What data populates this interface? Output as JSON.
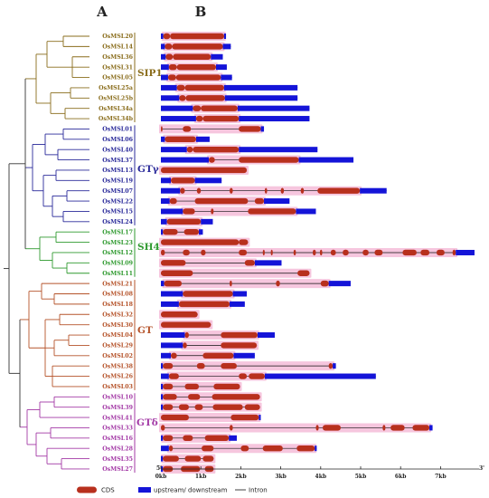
{
  "panels": {
    "a": "A",
    "b": "B"
  },
  "colors": {
    "SIP1": "#8a6d1c",
    "GTgamma": "#2a2a9a",
    "SH4": "#2f9a2f",
    "GT": "#b5532a",
    "GTdelta": "#a33aa6",
    "cds": "#b8301d",
    "utr": "#1414d8",
    "highlight": "#f6c6de",
    "root": "#333333"
  },
  "groups": [
    {
      "id": "SIP1",
      "label": "SIP1",
      "color": "#8a6d1c"
    },
    {
      "id": "GTgamma",
      "label": "GTγ",
      "color": "#2a2a9a"
    },
    {
      "id": "SH4",
      "label": "SH4",
      "color": "#2f9a2f"
    },
    {
      "id": "GT",
      "label": "GT",
      "color": "#b5532a"
    },
    {
      "id": "GTdelta",
      "label": "GTδ",
      "color": "#a33aa6"
    }
  ],
  "genes": [
    {
      "name": "OsMSL20",
      "group": "SIP1",
      "len": 1.63,
      "ex": [
        [
          0.06,
          0.23
        ],
        [
          0.23,
          1.58
        ]
      ]
    },
    {
      "name": "OsMSL14",
      "group": "SIP1",
      "len": 1.75,
      "ex": [
        [
          0.1,
          0.28
        ],
        [
          0.28,
          1.55
        ]
      ]
    },
    {
      "name": "OsMSL36",
      "group": "SIP1",
      "len": 1.55,
      "ex": [
        [
          0.12,
          0.3
        ],
        [
          0.3,
          1.25
        ]
      ]
    },
    {
      "name": "OsMSL31",
      "group": "SIP1",
      "len": 1.65,
      "ex": [
        [
          0.2,
          0.4
        ],
        [
          0.4,
          1.38
        ]
      ]
    },
    {
      "name": "OsMSL05",
      "group": "SIP1",
      "len": 1.78,
      "ex": [
        [
          0.18,
          0.38
        ],
        [
          0.38,
          1.5
        ]
      ]
    },
    {
      "name": "OsMSL25a",
      "group": "SIP1",
      "len": 3.42,
      "ex": [
        [
          0.4,
          0.6
        ],
        [
          0.6,
          1.58
        ]
      ]
    },
    {
      "name": "OsMSL25b",
      "group": "SIP1",
      "len": 3.42,
      "ex": [
        [
          0.46,
          0.62
        ],
        [
          0.62,
          1.6
        ]
      ]
    },
    {
      "name": "OsMSL34a",
      "group": "SIP1",
      "len": 3.72,
      "ex": [
        [
          0.8,
          1.0
        ],
        [
          1.0,
          1.92
        ]
      ]
    },
    {
      "name": "OsMSL34b",
      "group": "SIP1",
      "len": 3.72,
      "ex": [
        [
          0.88,
          1.05
        ],
        [
          1.05,
          1.95
        ]
      ]
    },
    {
      "name": "OsMSL01",
      "group": "GTgamma",
      "len": 2.58,
      "ex": [
        [
          0.0,
          0.04
        ],
        [
          0.55,
          0.75
        ],
        [
          1.95,
          2.5
        ]
      ]
    },
    {
      "name": "OsMSL06",
      "group": "GTgamma",
      "len": 1.22,
      "ex": [
        [
          0.1,
          0.88
        ]
      ]
    },
    {
      "name": "OsMSL40",
      "group": "GTgamma",
      "len": 3.92,
      "ex": [
        [
          0.65,
          0.8
        ],
        [
          0.8,
          1.95
        ]
      ]
    },
    {
      "name": "OsMSL37",
      "group": "GTgamma",
      "len": 4.82,
      "ex": [
        [
          1.2,
          1.35
        ],
        [
          1.95,
          3.45
        ]
      ]
    },
    {
      "name": "OsMSL13",
      "group": "GTgamma",
      "len": 2.15,
      "ex": [
        [
          0.0,
          2.15
        ]
      ]
    },
    {
      "name": "OsMSL19",
      "group": "GTgamma",
      "len": 1.52,
      "ex": [
        [
          0.25,
          0.85
        ]
      ]
    },
    {
      "name": "OsMSL07",
      "group": "GTgamma",
      "len": 5.65,
      "ex": [
        [
          0.48,
          0.6
        ],
        [
          0.9,
          1.0
        ],
        [
          1.72,
          1.8
        ],
        [
          2.6,
          2.66
        ],
        [
          3.0,
          3.08
        ],
        [
          3.5,
          3.58
        ],
        [
          3.92,
          4.98
        ]
      ]
    },
    {
      "name": "OsMSL22",
      "group": "GTgamma",
      "len": 3.22,
      "ex": [
        [
          0.22,
          0.4
        ],
        [
          0.85,
          2.18
        ],
        [
          2.35,
          2.58
        ]
      ]
    },
    {
      "name": "OsMSL15",
      "group": "GTgamma",
      "len": 3.88,
      "ex": [
        [
          0.55,
          0.85
        ],
        [
          1.25,
          1.32
        ],
        [
          2.18,
          3.38
        ]
      ]
    },
    {
      "name": "OsMSL24",
      "group": "GTgamma",
      "len": 1.3,
      "ex": [
        [
          0.15,
          1.0
        ]
      ]
    },
    {
      "name": "OsMSL17",
      "group": "SH4",
      "len": 1.05,
      "ex": [
        [
          0.05,
          0.42
        ],
        [
          0.58,
          0.95
        ]
      ]
    },
    {
      "name": "OsMSL23",
      "group": "SH4",
      "len": 2.18,
      "ex": [
        [
          0.0,
          1.95
        ],
        [
          1.95,
          2.18
        ]
      ]
    },
    {
      "name": "OsMSL12",
      "group": "SH4",
      "len": 7.85,
      "ex": [
        [
          0.0,
          0.1
        ],
        [
          0.55,
          0.72
        ],
        [
          1.0,
          1.12
        ],
        [
          1.95,
          2.15
        ],
        [
          2.55,
          2.6
        ],
        [
          2.75,
          2.8
        ],
        [
          3.32,
          3.38
        ],
        [
          3.8,
          3.88
        ],
        [
          3.98,
          4.04
        ],
        [
          4.25,
          4.38
        ],
        [
          4.55,
          4.7
        ],
        [
          5.05,
          5.2
        ],
        [
          5.35,
          5.55
        ],
        [
          6.05,
          6.4
        ],
        [
          6.5,
          6.72
        ],
        [
          6.9,
          7.1
        ],
        [
          7.3,
          7.38
        ]
      ]
    },
    {
      "name": "OsMSL09",
      "group": "SH4",
      "len": 3.02,
      "ex": [
        [
          0.0,
          0.62
        ],
        [
          2.1,
          2.35
        ]
      ]
    },
    {
      "name": "OsMSL11",
      "group": "SH4",
      "len": 3.72,
      "ex": [
        [
          0.0,
          0.8
        ],
        [
          3.42,
          3.72
        ]
      ]
    },
    {
      "name": "OsMSL21",
      "group": "GT",
      "len": 4.75,
      "ex": [
        [
          0.08,
          0.52
        ],
        [
          1.72,
          1.78
        ],
        [
          2.88,
          2.98
        ],
        [
          4.0,
          4.2
        ]
      ]
    },
    {
      "name": "OsMSL08",
      "group": "GT",
      "len": 2.15,
      "ex": [
        [
          0.55,
          1.8
        ]
      ]
    },
    {
      "name": "OsMSL18",
      "group": "GT",
      "len": 2.1,
      "ex": [
        [
          0.45,
          1.72
        ]
      ]
    },
    {
      "name": "OsMSL32",
      "group": "GT",
      "len": 0.92,
      "ex": [
        [
          0.0,
          0.92
        ]
      ]
    },
    {
      "name": "OsMSL30",
      "group": "GT",
      "len": 1.25,
      "ex": [
        [
          0.0,
          1.25
        ]
      ]
    },
    {
      "name": "OsMSL04",
      "group": "GT",
      "len": 2.85,
      "ex": [
        [
          0.6,
          0.7
        ],
        [
          1.5,
          2.42
        ]
      ]
    },
    {
      "name": "OsMSL29",
      "group": "GT",
      "len": 2.4,
      "ex": [
        [
          0.55,
          0.65
        ],
        [
          1.5,
          2.4
        ]
      ]
    },
    {
      "name": "OsMSL02",
      "group": "GT",
      "len": 2.35,
      "ex": [
        [
          0.25,
          0.4
        ],
        [
          1.05,
          1.82
        ]
      ]
    },
    {
      "name": "OsMSL38",
      "group": "GT",
      "len": 4.38,
      "ex": [
        [
          0.05,
          0.3
        ],
        [
          0.9,
          1.1
        ],
        [
          1.5,
          1.9
        ],
        [
          4.2,
          4.3
        ]
      ]
    },
    {
      "name": "OsMSL26",
      "group": "GT",
      "len": 5.38,
      "ex": [
        [
          0.2,
          0.45
        ],
        [
          1.95,
          2.15
        ],
        [
          2.2,
          2.6
        ]
      ]
    },
    {
      "name": "OsMSL03",
      "group": "GT",
      "len": 1.98,
      "ex": [
        [
          0.05,
          0.3
        ],
        [
          0.6,
          0.95
        ],
        [
          1.32,
          1.98
        ]
      ]
    },
    {
      "name": "OsMSL10",
      "group": "GTdelta",
      "len": 2.48,
      "ex": [
        [
          0.05,
          0.4
        ],
        [
          0.68,
          0.98
        ],
        [
          1.28,
          2.48
        ]
      ]
    },
    {
      "name": "OsMSL39",
      "group": "GTdelta",
      "len": 2.48,
      "ex": [
        [
          0.05,
          0.3
        ],
        [
          0.45,
          0.7
        ],
        [
          0.85,
          1.05
        ],
        [
          1.3,
          2.05
        ],
        [
          2.1,
          2.48
        ]
      ]
    },
    {
      "name": "OsMSL41",
      "group": "GTdelta",
      "len": 2.5,
      "ex": [
        [
          0.0,
          0.7
        ],
        [
          1.75,
          2.45
        ]
      ]
    },
    {
      "name": "OsMSL33",
      "group": "GTdelta",
      "len": 6.8,
      "ex": [
        [
          0.0,
          0.1
        ],
        [
          1.72,
          1.8
        ],
        [
          3.88,
          3.95
        ],
        [
          4.05,
          4.5
        ],
        [
          5.55,
          5.62
        ],
        [
          5.75,
          6.1
        ],
        [
          6.3,
          6.72
        ]
      ]
    },
    {
      "name": "OsMSL16",
      "group": "GTdelta",
      "len": 1.9,
      "ex": [
        [
          0.05,
          0.3
        ],
        [
          0.55,
          0.8
        ],
        [
          1.1,
          1.7
        ]
      ]
    },
    {
      "name": "OsMSL28",
      "group": "GTdelta",
      "len": 3.9,
      "ex": [
        [
          0.2,
          0.3
        ],
        [
          1.02,
          1.32
        ],
        [
          2.0,
          2.2
        ],
        [
          2.55,
          3.05
        ],
        [
          3.4,
          3.85
        ]
      ]
    },
    {
      "name": "OsMSL35",
      "group": "GTdelta",
      "len": 1.32,
      "ex": [
        [
          0.05,
          0.45
        ],
        [
          0.6,
          1.0
        ],
        [
          1.05,
          1.32
        ]
      ]
    },
    {
      "name": "OsMSL27",
      "group": "GTdelta",
      "len": 1.32,
      "ex": [
        [
          0.05,
          0.3
        ],
        [
          0.5,
          0.98
        ],
        [
          1.1,
          1.32
        ]
      ]
    }
  ],
  "axis": {
    "five_prime": "5'",
    "three_prime": "3'",
    "ticks": [
      {
        "kb": 0,
        "label": "0kb"
      },
      {
        "kb": 1,
        "label": "1kb"
      },
      {
        "kb": 2,
        "label": "2kb"
      },
      {
        "kb": 3,
        "label": "3kb"
      },
      {
        "kb": 4,
        "label": "4kb"
      },
      {
        "kb": 5,
        "label": "5kb"
      },
      {
        "kb": 6,
        "label": "6kb"
      },
      {
        "kb": 7,
        "label": "7kb"
      }
    ]
  },
  "legend": [
    {
      "kind": "cds",
      "label": "CDS"
    },
    {
      "kind": "utr",
      "label": "upstream/ downstream"
    },
    {
      "kind": "intron",
      "label": "Intron"
    }
  ]
}
